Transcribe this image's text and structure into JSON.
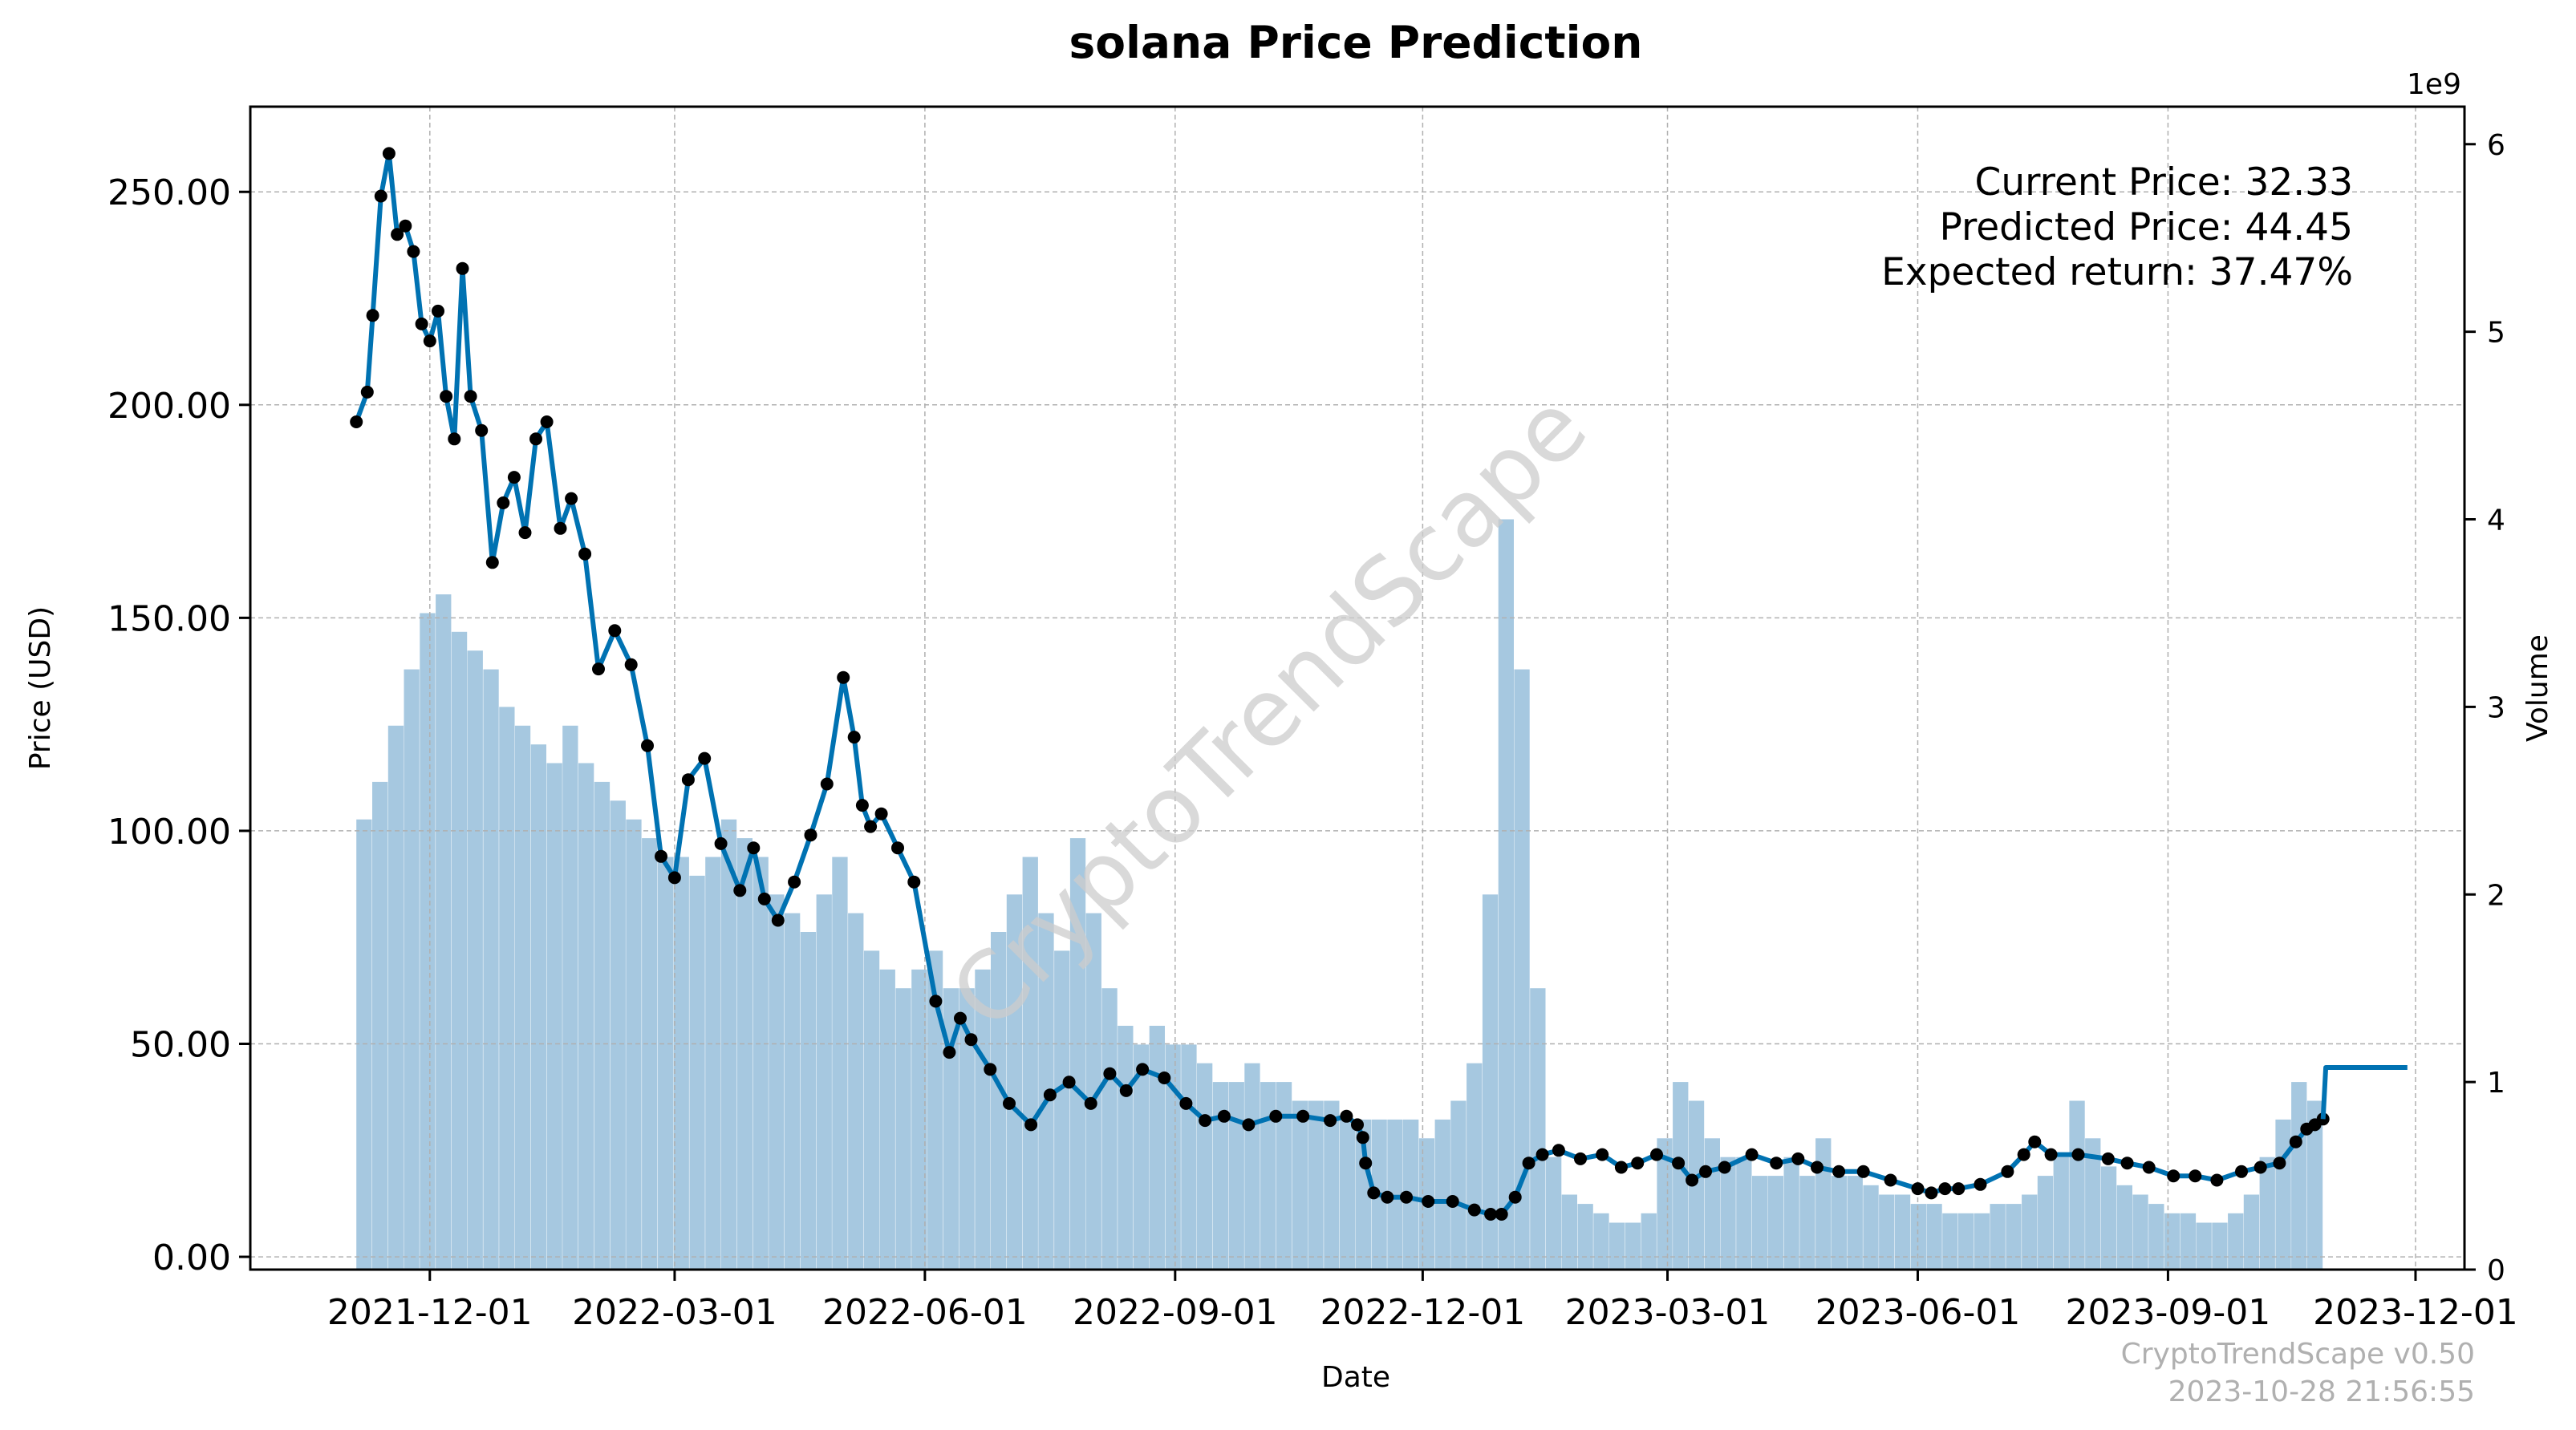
{
  "chart_data": {
    "type": "line",
    "title": "solana Price Prediction",
    "xlabel": "Date",
    "ylabel": "Price (USD)",
    "y2label": "Volume",
    "y2_offset_label": "1e9",
    "ylim": [
      -3,
      270
    ],
    "y2lim": [
      0,
      6.2
    ],
    "y_ticks": [
      "0.00",
      "50.00",
      "100.00",
      "150.00",
      "200.00",
      "250.00"
    ],
    "y_tick_values": [
      0,
      50,
      100,
      150,
      200,
      250
    ],
    "y2_ticks": [
      "0",
      "1",
      "2",
      "3",
      "4",
      "5",
      "6"
    ],
    "y2_tick_values": [
      0,
      1,
      2,
      3,
      4,
      5,
      6
    ],
    "xlim": [
      "2021-09-26",
      "2023-12-19"
    ],
    "x_ticks": [
      "2021-12-01",
      "2022-03-01",
      "2022-06-01",
      "2022-09-01",
      "2022-12-01",
      "2023-03-01",
      "2023-06-01",
      "2023-09-01",
      "2023-12-01"
    ],
    "grid": true,
    "price_series": {
      "x": [
        "2021-11-04",
        "2021-11-08",
        "2021-11-10",
        "2021-11-13",
        "2021-11-16",
        "2021-11-19",
        "2021-11-22",
        "2021-11-25",
        "2021-11-28",
        "2021-12-01",
        "2021-12-04",
        "2021-12-07",
        "2021-12-10",
        "2021-12-13",
        "2021-12-16",
        "2021-12-20",
        "2021-12-24",
        "2021-12-28",
        "2022-01-01",
        "2022-01-05",
        "2022-01-09",
        "2022-01-13",
        "2022-01-18",
        "2022-01-22",
        "2022-01-27",
        "2022-02-01",
        "2022-02-07",
        "2022-02-13",
        "2022-02-19",
        "2022-02-24",
        "2022-03-01",
        "2022-03-06",
        "2022-03-12",
        "2022-03-18",
        "2022-03-25",
        "2022-03-30",
        "2022-04-03",
        "2022-04-08",
        "2022-04-14",
        "2022-04-20",
        "2022-04-26",
        "2022-05-02",
        "2022-05-06",
        "2022-05-09",
        "2022-05-12",
        "2022-05-16",
        "2022-05-22",
        "2022-05-28",
        "2022-06-05",
        "2022-06-10",
        "2022-06-14",
        "2022-06-18",
        "2022-06-25",
        "2022-07-02",
        "2022-07-10",
        "2022-07-17",
        "2022-07-24",
        "2022-08-01",
        "2022-08-08",
        "2022-08-14",
        "2022-08-20",
        "2022-08-28",
        "2022-09-05",
        "2022-09-12",
        "2022-09-19",
        "2022-09-28",
        "2022-10-08",
        "2022-10-18",
        "2022-10-28",
        "2022-11-03",
        "2022-11-07",
        "2022-11-09",
        "2022-11-10",
        "2022-11-13",
        "2022-11-18",
        "2022-11-25",
        "2022-12-03",
        "2022-12-12",
        "2022-12-20",
        "2022-12-26",
        "2022-12-30",
        "2023-01-04",
        "2023-01-09",
        "2023-01-14",
        "2023-01-20",
        "2023-01-28",
        "2023-02-05",
        "2023-02-12",
        "2023-02-18",
        "2023-02-25",
        "2023-03-05",
        "2023-03-10",
        "2023-03-15",
        "2023-03-22",
        "2023-04-01",
        "2023-04-10",
        "2023-04-18",
        "2023-04-25",
        "2023-05-03",
        "2023-05-12",
        "2023-05-22",
        "2023-06-01",
        "2023-06-06",
        "2023-06-11",
        "2023-06-16",
        "2023-06-24",
        "2023-07-04",
        "2023-07-10",
        "2023-07-14",
        "2023-07-20",
        "2023-07-30",
        "2023-08-10",
        "2023-08-17",
        "2023-08-25",
        "2023-09-03",
        "2023-09-11",
        "2023-09-19",
        "2023-09-28",
        "2023-10-05",
        "2023-10-12",
        "2023-10-18",
        "2023-10-22",
        "2023-10-25",
        "2023-10-28"
      ],
      "y": [
        196,
        203,
        221,
        249,
        259,
        240,
        242,
        236,
        219,
        215,
        222,
        202,
        192,
        232,
        202,
        194,
        163,
        177,
        183,
        170,
        192,
        196,
        171,
        178,
        165,
        138,
        147,
        139,
        120,
        94,
        89,
        112,
        117,
        97,
        86,
        96,
        84,
        79,
        88,
        99,
        111,
        136,
        122,
        106,
        101,
        104,
        96,
        88,
        60,
        48,
        56,
        51,
        44,
        36,
        31,
        38,
        41,
        36,
        43,
        39,
        44,
        42,
        36,
        32,
        33,
        31,
        33,
        33,
        32,
        33,
        31,
        28,
        22,
        15,
        14,
        14,
        13,
        13,
        11,
        10,
        10,
        14,
        22,
        24,
        25,
        23,
        24,
        21,
        22,
        24,
        22,
        18,
        20,
        21,
        24,
        22,
        23,
        21,
        20,
        20,
        18,
        16,
        15,
        16,
        16,
        17,
        20,
        24,
        27,
        24,
        24,
        23,
        22,
        21,
        19,
        19,
        18,
        20,
        21,
        22,
        27,
        30,
        31,
        32.33
      ]
    },
    "prediction_series": {
      "x": [
        "2023-10-28",
        "2023-10-29",
        "2023-11-28"
      ],
      "y": [
        32.33,
        44.45,
        44.45
      ]
    },
    "volume_series": {
      "x_start": "2021-11-04",
      "x_end": "2023-10-28",
      "values": [
        2.4,
        2.6,
        2.9,
        3.2,
        3.5,
        3.6,
        3.4,
        3.3,
        3.2,
        3.0,
        2.9,
        2.8,
        2.7,
        2.9,
        2.7,
        2.6,
        2.5,
        2.4,
        2.3,
        2.2,
        2.2,
        2.1,
        2.2,
        2.4,
        2.3,
        2.2,
        2.0,
        1.9,
        1.8,
        2.0,
        2.2,
        1.9,
        1.7,
        1.6,
        1.5,
        1.6,
        1.7,
        1.5,
        1.5,
        1.6,
        1.8,
        2.0,
        2.2,
        1.9,
        1.7,
        2.3,
        1.9,
        1.5,
        1.3,
        1.2,
        1.3,
        1.2,
        1.2,
        1.1,
        1.0,
        1.0,
        1.1,
        1.0,
        1.0,
        0.9,
        0.9,
        0.9,
        0.8,
        0.8,
        0.8,
        0.8,
        0.8,
        0.7,
        0.8,
        0.9,
        1.1,
        2.0,
        4.0,
        3.2,
        1.5,
        0.6,
        0.4,
        0.35,
        0.3,
        0.25,
        0.25,
        0.3,
        0.7,
        1.0,
        0.9,
        0.7,
        0.6,
        0.6,
        0.5,
        0.5,
        0.6,
        0.5,
        0.7,
        0.5,
        0.5,
        0.45,
        0.4,
        0.4,
        0.35,
        0.35,
        0.3,
        0.3,
        0.3,
        0.35,
        0.35,
        0.4,
        0.5,
        0.6,
        0.9,
        0.7,
        0.55,
        0.45,
        0.4,
        0.35,
        0.3,
        0.3,
        0.25,
        0.25,
        0.3,
        0.4,
        0.6,
        0.8,
        1.0,
        0.9
      ]
    },
    "annotations": [
      "Current Price: 32.33",
      "Predicted Price: 44.45",
      "Expected return: 37.47%"
    ],
    "watermark": "CryptoTrendScape",
    "footer": [
      "CryptoTrendScape v0.50",
      "2023-10-28 21:56:55"
    ],
    "colors": {
      "price_line": "#0072b2",
      "price_marker": "#000000",
      "volume_bars": "#a6c8e0",
      "grid": "#b0b0b0",
      "watermark": "#cccccc",
      "footer": "#b0b0b0"
    }
  }
}
